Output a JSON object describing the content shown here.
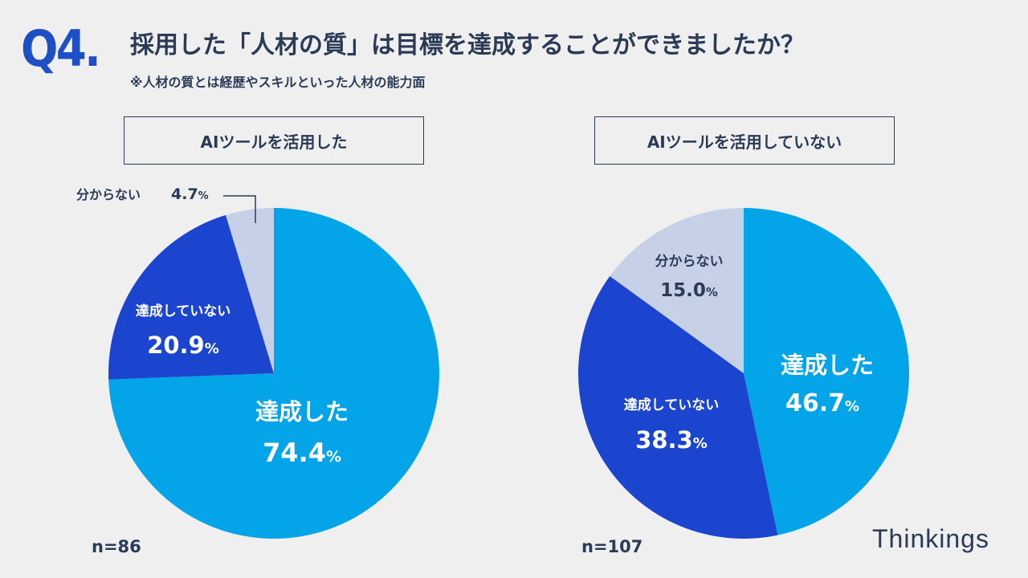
{
  "question": {
    "number": "Q4.",
    "title": "採用した「人材の質」は目標を達成することができましたか？",
    "note": "※人材の質とは経歴やスキルといった人材の能力面"
  },
  "brand": "Thinkings",
  "colors": {
    "achieved": "#03a4e8",
    "not_achieved": "#1c45cf",
    "unknown": "#c6d1e8",
    "text_dark": "#2b3a55"
  },
  "chart_data": [
    {
      "type": "pie",
      "title": "AIツールを活用した",
      "n_label": "n=86",
      "slices": [
        {
          "label": "達成した",
          "value": 74.4,
          "display": "74.4",
          "unit": "%"
        },
        {
          "label": "達成していない",
          "value": 20.9,
          "display": "20.9",
          "unit": "%"
        },
        {
          "label": "分からない",
          "value": 4.7,
          "display": "4.7",
          "unit": "%"
        }
      ]
    },
    {
      "type": "pie",
      "title": "AIツールを活用していない",
      "n_label": "n=107",
      "slices": [
        {
          "label": "達成した",
          "value": 46.7,
          "display": "46.7",
          "unit": "%"
        },
        {
          "label": "達成していない",
          "value": 38.3,
          "display": "38.3",
          "unit": "%"
        },
        {
          "label": "分からない",
          "value": 15.0,
          "display": "15.0",
          "unit": "%"
        }
      ]
    }
  ]
}
